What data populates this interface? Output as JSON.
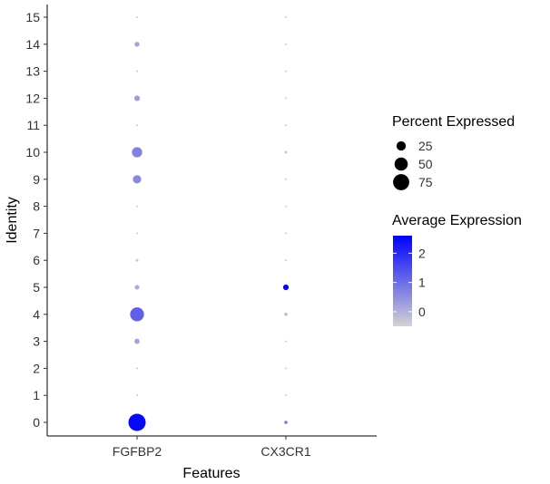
{
  "chart_data": {
    "type": "scatter",
    "subtype": "dot-plot",
    "xlabel": "Features",
    "ylabel": "Identity",
    "features": [
      "FGFBP2",
      "CX3CR1"
    ],
    "identities": [
      "0",
      "1",
      "2",
      "3",
      "4",
      "5",
      "6",
      "7",
      "8",
      "9",
      "10",
      "11",
      "12",
      "13",
      "14",
      "15"
    ],
    "points": [
      {
        "feature": "FGFBP2",
        "identity": "0",
        "pct": 85,
        "avg": 2.5
      },
      {
        "feature": "FGFBP2",
        "identity": "1",
        "pct": 1,
        "avg": -0.4
      },
      {
        "feature": "FGFBP2",
        "identity": "2",
        "pct": 1,
        "avg": -0.4
      },
      {
        "feature": "FGFBP2",
        "identity": "3",
        "pct": 8,
        "avg": 0.2
      },
      {
        "feature": "FGFBP2",
        "identity": "4",
        "pct": 55,
        "avg": 1.2
      },
      {
        "feature": "FGFBP2",
        "identity": "5",
        "pct": 6,
        "avg": 0.1
      },
      {
        "feature": "FGFBP2",
        "identity": "6",
        "pct": 2,
        "avg": -0.3
      },
      {
        "feature": "FGFBP2",
        "identity": "7",
        "pct": 1,
        "avg": -0.4
      },
      {
        "feature": "FGFBP2",
        "identity": "8",
        "pct": 1,
        "avg": -0.4
      },
      {
        "feature": "FGFBP2",
        "identity": "9",
        "pct": 20,
        "avg": 0.6
      },
      {
        "feature": "FGFBP2",
        "identity": "10",
        "pct": 30,
        "avg": 0.7
      },
      {
        "feature": "FGFBP2",
        "identity": "11",
        "pct": 1,
        "avg": -0.4
      },
      {
        "feature": "FGFBP2",
        "identity": "12",
        "pct": 9,
        "avg": 0.3
      },
      {
        "feature": "FGFBP2",
        "identity": "13",
        "pct": 1,
        "avg": -0.4
      },
      {
        "feature": "FGFBP2",
        "identity": "14",
        "pct": 7,
        "avg": 0.2
      },
      {
        "feature": "FGFBP2",
        "identity": "15",
        "pct": 1,
        "avg": -0.4
      },
      {
        "feature": "CX3CR1",
        "identity": "0",
        "pct": 3,
        "avg": 0.9
      },
      {
        "feature": "CX3CR1",
        "identity": "1",
        "pct": 1,
        "avg": -0.4
      },
      {
        "feature": "CX3CR1",
        "identity": "2",
        "pct": 1,
        "avg": -0.4
      },
      {
        "feature": "CX3CR1",
        "identity": "3",
        "pct": 1,
        "avg": -0.4
      },
      {
        "feature": "CX3CR1",
        "identity": "4",
        "pct": 3,
        "avg": -0.1
      },
      {
        "feature": "CX3CR1",
        "identity": "5",
        "pct": 9,
        "avg": 2.6
      },
      {
        "feature": "CX3CR1",
        "identity": "6",
        "pct": 1,
        "avg": -0.4
      },
      {
        "feature": "CX3CR1",
        "identity": "7",
        "pct": 1,
        "avg": -0.4
      },
      {
        "feature": "CX3CR1",
        "identity": "8",
        "pct": 1,
        "avg": -0.4
      },
      {
        "feature": "CX3CR1",
        "identity": "9",
        "pct": 1,
        "avg": -0.4
      },
      {
        "feature": "CX3CR1",
        "identity": "10",
        "pct": 2,
        "avg": -0.3
      },
      {
        "feature": "CX3CR1",
        "identity": "11",
        "pct": 1,
        "avg": -0.4
      },
      {
        "feature": "CX3CR1",
        "identity": "12",
        "pct": 1,
        "avg": -0.4
      },
      {
        "feature": "CX3CR1",
        "identity": "13",
        "pct": 1,
        "avg": -0.4
      },
      {
        "feature": "CX3CR1",
        "identity": "14",
        "pct": 1,
        "avg": -0.4
      },
      {
        "feature": "CX3CR1",
        "identity": "15",
        "pct": 1,
        "avg": -0.4
      }
    ],
    "size_legend": {
      "title": "Percent Expressed",
      "entries": [
        {
          "label": "25",
          "value": 25
        },
        {
          "label": "50",
          "value": 50
        },
        {
          "label": "75",
          "value": 75
        }
      ]
    },
    "color_legend": {
      "title": "Average Expression",
      "range": [
        -0.5,
        2.6
      ],
      "ticks": [
        {
          "label": "2",
          "value": 2
        },
        {
          "label": "1",
          "value": 1
        },
        {
          "label": "0",
          "value": 0
        }
      ],
      "low_color": "#d3d3d3",
      "high_color": "#0000ff"
    },
    "pct_max": 85,
    "grid": false,
    "legend_position": "right"
  }
}
